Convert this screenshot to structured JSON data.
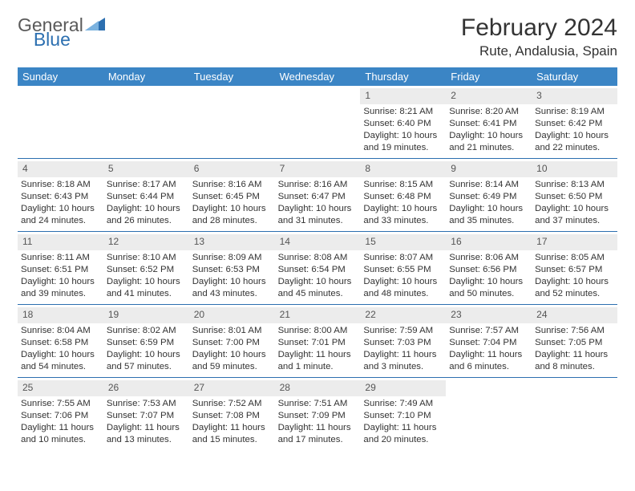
{
  "logo": {
    "word1": "General",
    "word2": "Blue"
  },
  "title": "February 2024",
  "location": "Rute, Andalusia, Spain",
  "colors": {
    "header_bg": "#3b85c5",
    "rule": "#2c6fb0",
    "daynum_bg": "#ececec",
    "text": "#333333",
    "logo_gray": "#5a5a5a",
    "logo_blue": "#2c6fb0"
  },
  "day_headers": [
    "Sunday",
    "Monday",
    "Tuesday",
    "Wednesday",
    "Thursday",
    "Friday",
    "Saturday"
  ],
  "weeks": [
    [
      {
        "n": "",
        "sr": "",
        "ss": "",
        "dl": ""
      },
      {
        "n": "",
        "sr": "",
        "ss": "",
        "dl": ""
      },
      {
        "n": "",
        "sr": "",
        "ss": "",
        "dl": ""
      },
      {
        "n": "",
        "sr": "",
        "ss": "",
        "dl": ""
      },
      {
        "n": "1",
        "sr": "Sunrise: 8:21 AM",
        "ss": "Sunset: 6:40 PM",
        "dl": "Daylight: 10 hours and 19 minutes."
      },
      {
        "n": "2",
        "sr": "Sunrise: 8:20 AM",
        "ss": "Sunset: 6:41 PM",
        "dl": "Daylight: 10 hours and 21 minutes."
      },
      {
        "n": "3",
        "sr": "Sunrise: 8:19 AM",
        "ss": "Sunset: 6:42 PM",
        "dl": "Daylight: 10 hours and 22 minutes."
      }
    ],
    [
      {
        "n": "4",
        "sr": "Sunrise: 8:18 AM",
        "ss": "Sunset: 6:43 PM",
        "dl": "Daylight: 10 hours and 24 minutes."
      },
      {
        "n": "5",
        "sr": "Sunrise: 8:17 AM",
        "ss": "Sunset: 6:44 PM",
        "dl": "Daylight: 10 hours and 26 minutes."
      },
      {
        "n": "6",
        "sr": "Sunrise: 8:16 AM",
        "ss": "Sunset: 6:45 PM",
        "dl": "Daylight: 10 hours and 28 minutes."
      },
      {
        "n": "7",
        "sr": "Sunrise: 8:16 AM",
        "ss": "Sunset: 6:47 PM",
        "dl": "Daylight: 10 hours and 31 minutes."
      },
      {
        "n": "8",
        "sr": "Sunrise: 8:15 AM",
        "ss": "Sunset: 6:48 PM",
        "dl": "Daylight: 10 hours and 33 minutes."
      },
      {
        "n": "9",
        "sr": "Sunrise: 8:14 AM",
        "ss": "Sunset: 6:49 PM",
        "dl": "Daylight: 10 hours and 35 minutes."
      },
      {
        "n": "10",
        "sr": "Sunrise: 8:13 AM",
        "ss": "Sunset: 6:50 PM",
        "dl": "Daylight: 10 hours and 37 minutes."
      }
    ],
    [
      {
        "n": "11",
        "sr": "Sunrise: 8:11 AM",
        "ss": "Sunset: 6:51 PM",
        "dl": "Daylight: 10 hours and 39 minutes."
      },
      {
        "n": "12",
        "sr": "Sunrise: 8:10 AM",
        "ss": "Sunset: 6:52 PM",
        "dl": "Daylight: 10 hours and 41 minutes."
      },
      {
        "n": "13",
        "sr": "Sunrise: 8:09 AM",
        "ss": "Sunset: 6:53 PM",
        "dl": "Daylight: 10 hours and 43 minutes."
      },
      {
        "n": "14",
        "sr": "Sunrise: 8:08 AM",
        "ss": "Sunset: 6:54 PM",
        "dl": "Daylight: 10 hours and 45 minutes."
      },
      {
        "n": "15",
        "sr": "Sunrise: 8:07 AM",
        "ss": "Sunset: 6:55 PM",
        "dl": "Daylight: 10 hours and 48 minutes."
      },
      {
        "n": "16",
        "sr": "Sunrise: 8:06 AM",
        "ss": "Sunset: 6:56 PM",
        "dl": "Daylight: 10 hours and 50 minutes."
      },
      {
        "n": "17",
        "sr": "Sunrise: 8:05 AM",
        "ss": "Sunset: 6:57 PM",
        "dl": "Daylight: 10 hours and 52 minutes."
      }
    ],
    [
      {
        "n": "18",
        "sr": "Sunrise: 8:04 AM",
        "ss": "Sunset: 6:58 PM",
        "dl": "Daylight: 10 hours and 54 minutes."
      },
      {
        "n": "19",
        "sr": "Sunrise: 8:02 AM",
        "ss": "Sunset: 6:59 PM",
        "dl": "Daylight: 10 hours and 57 minutes."
      },
      {
        "n": "20",
        "sr": "Sunrise: 8:01 AM",
        "ss": "Sunset: 7:00 PM",
        "dl": "Daylight: 10 hours and 59 minutes."
      },
      {
        "n": "21",
        "sr": "Sunrise: 8:00 AM",
        "ss": "Sunset: 7:01 PM",
        "dl": "Daylight: 11 hours and 1 minute."
      },
      {
        "n": "22",
        "sr": "Sunrise: 7:59 AM",
        "ss": "Sunset: 7:03 PM",
        "dl": "Daylight: 11 hours and 3 minutes."
      },
      {
        "n": "23",
        "sr": "Sunrise: 7:57 AM",
        "ss": "Sunset: 7:04 PM",
        "dl": "Daylight: 11 hours and 6 minutes."
      },
      {
        "n": "24",
        "sr": "Sunrise: 7:56 AM",
        "ss": "Sunset: 7:05 PM",
        "dl": "Daylight: 11 hours and 8 minutes."
      }
    ],
    [
      {
        "n": "25",
        "sr": "Sunrise: 7:55 AM",
        "ss": "Sunset: 7:06 PM",
        "dl": "Daylight: 11 hours and 10 minutes."
      },
      {
        "n": "26",
        "sr": "Sunrise: 7:53 AM",
        "ss": "Sunset: 7:07 PM",
        "dl": "Daylight: 11 hours and 13 minutes."
      },
      {
        "n": "27",
        "sr": "Sunrise: 7:52 AM",
        "ss": "Sunset: 7:08 PM",
        "dl": "Daylight: 11 hours and 15 minutes."
      },
      {
        "n": "28",
        "sr": "Sunrise: 7:51 AM",
        "ss": "Sunset: 7:09 PM",
        "dl": "Daylight: 11 hours and 17 minutes."
      },
      {
        "n": "29",
        "sr": "Sunrise: 7:49 AM",
        "ss": "Sunset: 7:10 PM",
        "dl": "Daylight: 11 hours and 20 minutes."
      },
      {
        "n": "",
        "sr": "",
        "ss": "",
        "dl": ""
      },
      {
        "n": "",
        "sr": "",
        "ss": "",
        "dl": ""
      }
    ]
  ]
}
